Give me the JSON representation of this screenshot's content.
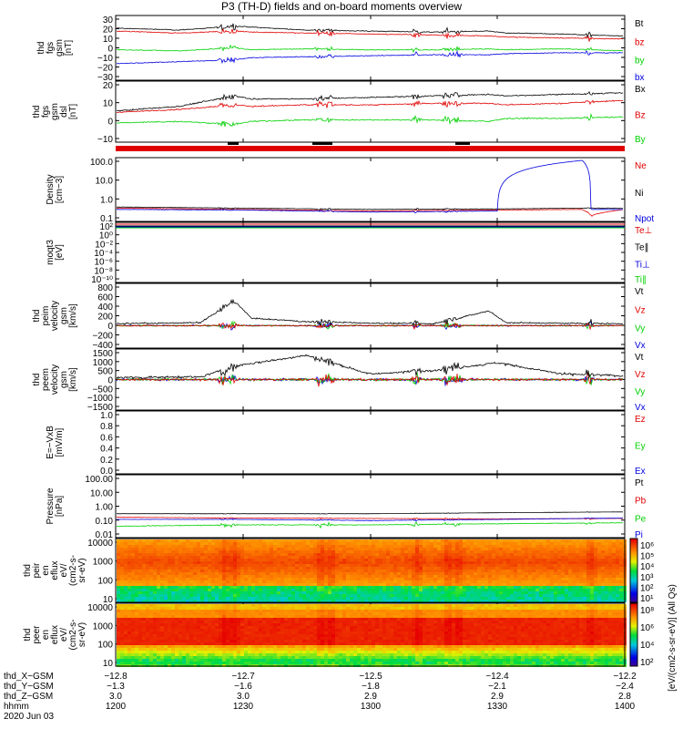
{
  "title": "P3 (TH-D) fields and on-board moments overview",
  "colors": {
    "black": "#000000",
    "red": "#e00000",
    "green": "#00d000",
    "blue": "#0000e0"
  },
  "panels": [
    {
      "id": "fgs-gsm",
      "ylabel": [
        "thd",
        "fgs",
        "gsm",
        "[nT]"
      ],
      "scale": "linear",
      "ylim": [
        -30,
        30
      ],
      "ticks": [
        "30",
        "20",
        "10",
        "0",
        "−10",
        "−20",
        "−30"
      ],
      "legend": [
        {
          "label": "Bt",
          "color": "black"
        },
        {
          "label": "bz",
          "color": "red"
        },
        {
          "label": "by",
          "color": "green"
        },
        {
          "label": "bx",
          "color": "blue"
        }
      ]
    },
    {
      "id": "fgs-dsl",
      "ylabel": [
        "thd",
        "fgs",
        "gsm",
        "dsl",
        "[nT]"
      ],
      "scale": "linear",
      "ylim": [
        -15,
        22
      ],
      "ticks": [
        "20",
        "10",
        "0",
        "−10"
      ],
      "legend": [
        {
          "label": "Bx",
          "color": "black"
        },
        {
          "label": "Bz",
          "color": "red"
        },
        {
          "label": "By",
          "color": "green"
        }
      ]
    },
    {
      "id": "density",
      "ylabel": [
        "Density",
        "[cm−3]"
      ],
      "scale": "log",
      "ylim": [
        0.1,
        100
      ],
      "ticks": [
        "100.0",
        "10.0",
        "1.0",
        "0.1"
      ],
      "legend": [
        {
          "label": "Ne",
          "color": "red"
        },
        {
          "label": "Ni",
          "color": "black"
        },
        {
          "label": "Npot",
          "color": "blue"
        }
      ]
    },
    {
      "id": "temperature",
      "ylabel": [
        "moqt3",
        "[eV]"
      ],
      "scale": "log",
      "ylim": [
        1e-10,
        100.0
      ],
      "ticks": [
        "10²",
        "10⁰",
        "10⁻²",
        "10⁻⁴",
        "10⁻⁶",
        "10⁻⁸",
        "10⁻¹⁰"
      ],
      "legend": [
        {
          "label": "Te⊥",
          "color": "red"
        },
        {
          "label": "Te∥",
          "color": "black"
        },
        {
          "label": "Ti⊥",
          "color": "blue"
        },
        {
          "label": "Ti∥",
          "color": "green"
        }
      ]
    },
    {
      "id": "peim-velocity",
      "ylabel": [
        "thd",
        "peim",
        "velocity",
        "gsm",
        "[km/s]"
      ],
      "scale": "linear",
      "ylim": [
        -400,
        800
      ],
      "ticks": [
        "800",
        "600",
        "400",
        "200",
        "0",
        "−200",
        "−400"
      ],
      "legend": [
        {
          "label": "Vt",
          "color": "black"
        },
        {
          "label": "Vz",
          "color": "red"
        },
        {
          "label": "Vy",
          "color": "green"
        },
        {
          "label": "Vx",
          "color": "blue"
        }
      ]
    },
    {
      "id": "peem-velocity",
      "ylabel": [
        "thd",
        "peem",
        "velocity",
        "gsm",
        "[km/s]"
      ],
      "scale": "linear",
      "ylim": [
        -1500,
        1500
      ],
      "ticks": [
        "1500",
        "1000",
        "500",
        "0",
        "−500",
        "−1000",
        "−1500"
      ],
      "legend": [
        {
          "label": "Vt",
          "color": "black"
        },
        {
          "label": "Vz",
          "color": "red"
        },
        {
          "label": "Vy",
          "color": "green"
        },
        {
          "label": "Vx",
          "color": "blue"
        }
      ]
    },
    {
      "id": "efield",
      "ylabel": [
        "E=−VxB",
        "[mV/m]"
      ],
      "scale": "linear",
      "ylim": [
        0,
        1
      ],
      "ticks": [
        "1.0",
        "0.8",
        "0.6",
        "0.4",
        "0.2",
        "0.0"
      ],
      "legend": [
        {
          "label": "Ez",
          "color": "red"
        },
        {
          "label": "Ey",
          "color": "green"
        },
        {
          "label": "Ex",
          "color": "blue"
        }
      ]
    },
    {
      "id": "pressure",
      "ylabel": [
        "Pressure",
        "[nPa]"
      ],
      "scale": "log",
      "ylim": [
        0.01,
        100
      ],
      "ticks": [
        "100.00",
        "10.00",
        "1.00",
        "0.10",
        "0.01"
      ],
      "legend": [
        {
          "label": "Pt",
          "color": "black"
        },
        {
          "label": "Pb",
          "color": "red"
        },
        {
          "label": "Pe",
          "color": "green"
        },
        {
          "label": "Pi",
          "color": "blue"
        }
      ]
    },
    {
      "id": "peir-eflux",
      "ylabel": [
        "thd",
        "peir",
        "en",
        "eflux",
        "eV/",
        "(cm2-s-",
        "sr-eV)"
      ],
      "scale": "log",
      "ylim": [
        7,
        20000
      ],
      "ticks": [
        "10000",
        "1000",
        "100",
        "10"
      ],
      "colorbar": [
        "10⁶",
        "10⁵",
        "10⁴",
        "10³",
        "10²",
        "10¹"
      ]
    },
    {
      "id": "peer-eflux",
      "ylabel": [
        "thd",
        "peer",
        "en",
        "eflux",
        "eV/",
        "(cm2-s-",
        "sr-eV)"
      ],
      "scale": "log",
      "ylim": [
        7,
        20000
      ],
      "ticks": [
        "10000",
        "1000",
        "100",
        "10"
      ],
      "colorbar": [
        "10⁸",
        "10⁶",
        "10⁴",
        "10²"
      ]
    }
  ],
  "colorbar_title": "[eV/(cm2-s-sr-eV)] (All Qs)",
  "ephemeris": {
    "rows": [
      {
        "label": "thd_X−GSM",
        "values": [
          "−12.8",
          "−12.7",
          "−12.5",
          "−12.4",
          "−12.2"
        ]
      },
      {
        "label": "thd_Y−GSM",
        "values": [
          "−1.3",
          "−1.6",
          "−1.8",
          "−2.1",
          "−2.4"
        ]
      },
      {
        "label": "thd_Z−GSM",
        "values": [
          "3.0",
          "3.0",
          "2.9",
          "2.9",
          "2.8"
        ]
      },
      {
        "label": "hhmm",
        "values": [
          "1200",
          "1230",
          "1300",
          "1330",
          "1400"
        ]
      }
    ],
    "date": "2020 Jun 03"
  },
  "chart_data": {
    "type": "line",
    "title": "P3 (TH-D) fields and on-board moments overview",
    "x_axis": {
      "label": "hhmm",
      "categories": [
        "1200",
        "1230",
        "1300",
        "1330",
        "1400"
      ],
      "range": [
        "12:00",
        "14:00"
      ],
      "date": "2020 Jun 03"
    },
    "panels": [
      {
        "name": "fgs gsm",
        "ylim": [
          -30,
          30
        ],
        "series": [
          {
            "name": "Bt",
            "x": [
              "1200",
              "1215",
              "1228",
              "1232",
              "1245",
              "1300",
              "1315",
              "1328",
              "1332",
              "1345",
              "1400"
            ],
            "values": [
              20,
              18,
              22,
              21,
              18,
              17,
              16,
              17,
              15,
              14,
              12
            ]
          },
          {
            "name": "bz",
            "x": [
              "1200",
              "1215",
              "1228",
              "1232",
              "1245",
              "1300",
              "1315",
              "1328",
              "1332",
              "1345",
              "1400"
            ],
            "values": [
              17,
              15,
              17,
              16,
              15,
              14,
              13,
              12,
              11,
              10,
              9
            ]
          },
          {
            "name": "by",
            "x": [
              "1200",
              "1215",
              "1228",
              "1232",
              "1245",
              "1300",
              "1315",
              "1328",
              "1332",
              "1345",
              "1400"
            ],
            "values": [
              -2,
              -3,
              0,
              -2,
              -1,
              -2,
              -2,
              -1,
              -2,
              -1,
              -3
            ]
          },
          {
            "name": "bx",
            "x": [
              "1200",
              "1215",
              "1228",
              "1232",
              "1245",
              "1300",
              "1315",
              "1328",
              "1332",
              "1345",
              "1400"
            ],
            "values": [
              -16,
              -14,
              -12,
              -10,
              -9,
              -8,
              -7,
              -7,
              -6,
              -5,
              -5
            ]
          }
        ]
      },
      {
        "name": "fgs dsl",
        "ylim": [
          -15,
          22
        ],
        "series": [
          {
            "name": "Bx",
            "x": [
              "1200",
              "1215",
              "1228",
              "1232",
              "1245",
              "1300",
              "1315",
              "1328",
              "1332",
              "1345",
              "1400"
            ],
            "values": [
              4,
              7,
              14,
              12,
              12,
              13,
              14,
              15,
              14,
              15,
              16
            ]
          },
          {
            "name": "Bz",
            "x": [
              "1200",
              "1215",
              "1228",
              "1232",
              "1245",
              "1300",
              "1315",
              "1328",
              "1332",
              "1345",
              "1400"
            ],
            "values": [
              3,
              5,
              8,
              7,
              8,
              8,
              9,
              9,
              8,
              9,
              11
            ]
          },
          {
            "name": "By",
            "x": [
              "1200",
              "1215",
              "1228",
              "1232",
              "1245",
              "1300",
              "1315",
              "1328",
              "1332",
              "1345",
              "1400"
            ],
            "values": [
              -4,
              -3,
              -5,
              -3,
              -2,
              -2,
              -2,
              -3,
              -1,
              -1,
              0
            ]
          }
        ]
      },
      {
        "name": "Density",
        "scale": "log",
        "ylim": [
          0.1,
          100
        ],
        "series": [
          {
            "name": "Ne",
            "x": [
              "1200",
              "1230",
              "1300",
              "1330",
              "1350",
              "1352",
              "1400"
            ],
            "values": [
              0.35,
              0.3,
              0.25,
              0.28,
              0.3,
              0.15,
              0.3
            ]
          },
          {
            "name": "Ni",
            "x": [
              "1200",
              "1230",
              "1300",
              "1330",
              "1350",
              "1352",
              "1400"
            ],
            "values": [
              0.4,
              0.35,
              0.3,
              0.32,
              0.35,
              0.35,
              0.35
            ]
          },
          {
            "name": "Npot",
            "x": [
              "1200",
              "1230",
              "1300",
              "1330",
              "1350",
              "1352",
              "1400"
            ],
            "values": [
              0.3,
              0.28,
              0.22,
              0.25,
              100,
              0.3,
              0.3
            ]
          }
        ]
      },
      {
        "name": "Pressure",
        "scale": "log",
        "ylim": [
          0.01,
          100
        ],
        "series": [
          {
            "name": "Pt",
            "x": [
              "1200",
              "1230",
              "1300",
              "1330",
              "1400"
            ],
            "values": [
              0.3,
              0.3,
              0.3,
              0.35,
              0.4
            ]
          },
          {
            "name": "Pb",
            "x": [
              "1200",
              "1230",
              "1300",
              "1330",
              "1400"
            ],
            "values": [
              0.17,
              0.15,
              0.14,
              0.13,
              0.14
            ]
          },
          {
            "name": "Pe",
            "x": [
              "1200",
              "1230",
              "1300",
              "1330",
              "1400"
            ],
            "values": [
              0.04,
              0.05,
              0.05,
              0.06,
              0.07
            ]
          },
          {
            "name": "Pi",
            "x": [
              "1200",
              "1230",
              "1300",
              "1330",
              "1400"
            ],
            "values": [
              0.12,
              0.12,
              0.1,
              0.12,
              0.15
            ]
          }
        ]
      },
      {
        "name": "peim velocity gsm",
        "ylim": [
          -400,
          800
        ],
        "series": [
          {
            "name": "Vt",
            "x": [
              "1200",
              "1220",
              "1228",
              "1232",
              "1245",
              "1300",
              "1315",
              "1328",
              "1332",
              "1345",
              "1400"
            ],
            "values": [
              40,
              60,
              500,
              150,
              80,
              50,
              40,
              300,
              60,
              50,
              40
            ]
          }
        ]
      },
      {
        "name": "peem velocity gsm",
        "ylim": [
          -1500,
          1500
        ],
        "series": [
          {
            "name": "Vt",
            "x": [
              "1200",
              "1220",
              "1230",
              "1245",
              "1300",
              "1315",
              "1330",
              "1345",
              "1400"
            ],
            "values": [
              100,
              150,
              800,
              1300,
              300,
              500,
              900,
              300,
              200
            ]
          }
        ]
      }
    ]
  }
}
